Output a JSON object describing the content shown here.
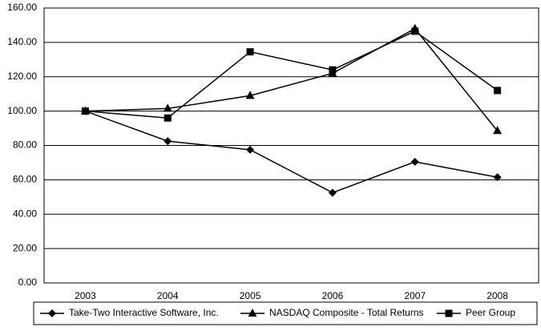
{
  "chart_data": {
    "type": "line",
    "categories": [
      "2003",
      "2004",
      "2005",
      "2006",
      "2007",
      "2008"
    ],
    "series": [
      {
        "name": "Take-Two Interactive Software, Inc.",
        "color": "#000000",
        "marker": "diamond",
        "values": [
          100,
          82.5,
          77.5,
          52.5,
          70.5,
          61.5
        ]
      },
      {
        "name": "NASDAQ Composite - Total Returns",
        "color": "#000000",
        "marker": "triangle",
        "values": [
          100,
          101.5,
          109,
          122,
          148,
          88.5
        ]
      },
      {
        "name": "Peer Group",
        "color": "#000000",
        "marker": "square",
        "values": [
          100,
          96,
          134.5,
          124,
          146.5,
          112
        ]
      }
    ],
    "ylim": [
      0,
      160
    ],
    "yticks": [
      {
        "value": 0,
        "label": "0.00"
      },
      {
        "value": 20,
        "label": "20.00"
      },
      {
        "value": 40,
        "label": "40.00"
      },
      {
        "value": 60,
        "label": "60.00"
      },
      {
        "value": 80,
        "label": "80.00"
      },
      {
        "value": 100,
        "label": "100.00"
      },
      {
        "value": 120,
        "label": "120.00"
      },
      {
        "value": 140,
        "label": "140.00"
      },
      {
        "value": 160,
        "label": "160.00"
      }
    ],
    "grid": true,
    "legend": "bottom"
  }
}
